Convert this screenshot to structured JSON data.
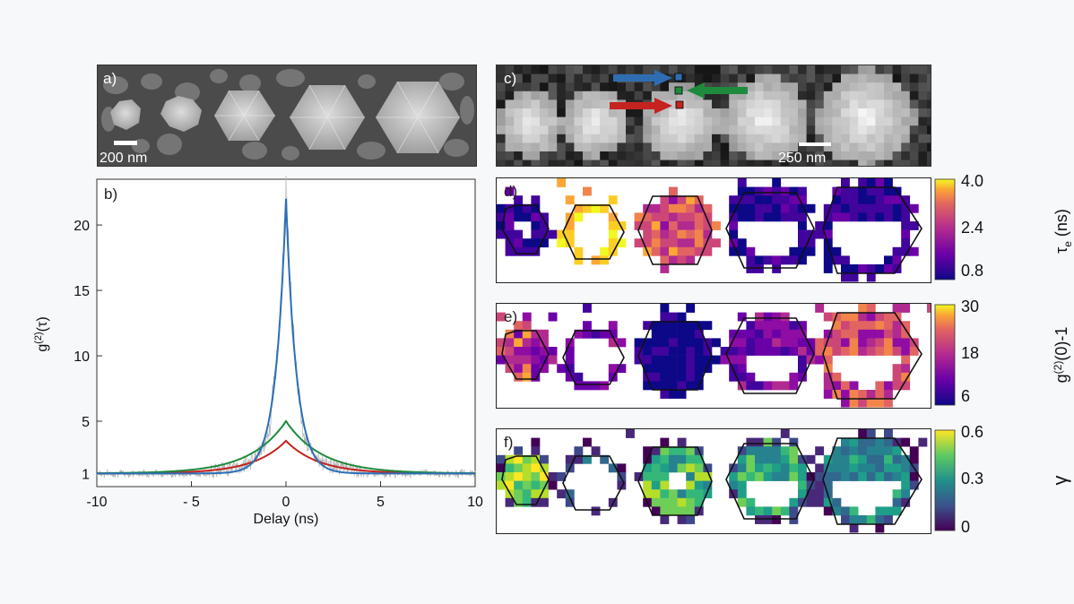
{
  "panels": {
    "a": {
      "label": "a)",
      "scale": "200 nm"
    },
    "b": {
      "label": "b)"
    },
    "c": {
      "label": "c)",
      "scale": "250 nm"
    },
    "d": {
      "label": "d)"
    },
    "e": {
      "label": "e)"
    },
    "f": {
      "label": "f)"
    }
  },
  "colorbars": {
    "d": {
      "ticks": [
        "4.0",
        "2.4",
        "0.8"
      ],
      "label_main": "τ",
      "label_sub": "e",
      "label_unit": " (ns)",
      "colormap": "plasma"
    },
    "e": {
      "ticks": [
        "30",
        "18",
        "6"
      ],
      "label_pre": "g",
      "label_sup": "(2)",
      "label_post": "(0)-1",
      "colormap": "plasma"
    },
    "f": {
      "ticks": [
        "0.6",
        "0.3",
        "0"
      ],
      "label": "γ",
      "colormap": "viridis"
    }
  },
  "arrows": {
    "blue": "#2f6db3",
    "green": "#1e8a3c",
    "red": "#c4231f"
  },
  "chart_data": {
    "type": "line",
    "ylabel_main": "g",
    "ylabel_sup": "(2)",
    "ylabel_post": "(τ)",
    "xlabel": "Delay (ns)",
    "xlim": [
      -10,
      10
    ],
    "ylim": [
      0,
      23.5
    ],
    "xticks": [
      -10,
      -5,
      0,
      5,
      10
    ],
    "xtick_labels": [
      "-10",
      "- 5",
      "0",
      "5",
      "10"
    ],
    "yticks": [
      1,
      5,
      10,
      15,
      20
    ],
    "series": [
      {
        "color": "#2c6fb7",
        "peak": 22.0,
        "baseline": 1.0,
        "decay_ns": 0.55
      },
      {
        "color": "#1e8a3c",
        "peak": 5.0,
        "baseline": 1.0,
        "decay_ns": 1.9
      },
      {
        "color": "#c4231f",
        "peak": 3.5,
        "baseline": 1.0,
        "decay_ns": 1.7
      },
      {
        "color": "#b8b8b8",
        "peak": 22.5,
        "baseline": 1.0,
        "decay_ns": 0.55
      }
    ]
  }
}
